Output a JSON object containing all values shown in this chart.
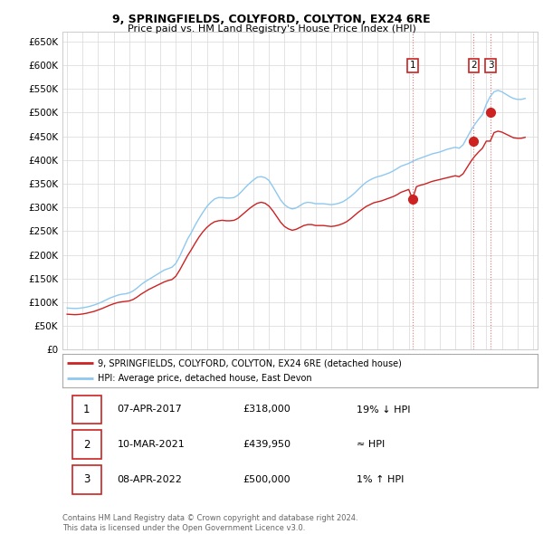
{
  "title": "9, SPRINGFIELDS, COLYFORD, COLYTON, EX24 6RE",
  "subtitle": "Price paid vs. HM Land Registry's House Price Index (HPI)",
  "ylabel_ticks": [
    0,
    50000,
    100000,
    150000,
    200000,
    250000,
    300000,
    350000,
    400000,
    450000,
    500000,
    550000,
    600000,
    650000
  ],
  "ylabel_labels": [
    "£0",
    "£50K",
    "£100K",
    "£150K",
    "£200K",
    "£250K",
    "£300K",
    "£350K",
    "£400K",
    "£450K",
    "£500K",
    "£550K",
    "£600K",
    "£650K"
  ],
  "xlim": [
    1994.7,
    2025.3
  ],
  "ylim": [
    0,
    670000
  ],
  "hpi_color": "#8ec8f0",
  "property_color": "#cc2222",
  "marker_color": "#cc2222",
  "vline_color": "#dd6666",
  "background_color": "#ffffff",
  "grid_color": "#d8d8d8",
  "transactions": [
    {
      "num": 1,
      "date": "07-APR-2017",
      "price": 318000,
      "price_str": "£318,000",
      "relation": "19% ↓ HPI",
      "year": 2017.27
    },
    {
      "num": 2,
      "date": "10-MAR-2021",
      "price": 439950,
      "price_str": "£439,950",
      "relation": "≈ HPI",
      "year": 2021.19
    },
    {
      "num": 3,
      "date": "08-APR-2022",
      "price": 500000,
      "price_str": "£500,000",
      "relation": "1% ↑ HPI",
      "year": 2022.27
    }
  ],
  "legend_property": "9, SPRINGFIELDS, COLYFORD, COLYTON, EX24 6RE (detached house)",
  "legend_hpi": "HPI: Average price, detached house, East Devon",
  "footnote1": "Contains HM Land Registry data © Crown copyright and database right 2024.",
  "footnote2": "This data is licensed under the Open Government Licence v3.0.",
  "hpi_data_years": [
    1995.0,
    1995.25,
    1995.5,
    1995.75,
    1996.0,
    1996.25,
    1996.5,
    1996.75,
    1997.0,
    1997.25,
    1997.5,
    1997.75,
    1998.0,
    1998.25,
    1998.5,
    1998.75,
    1999.0,
    1999.25,
    1999.5,
    1999.75,
    2000.0,
    2000.25,
    2000.5,
    2000.75,
    2001.0,
    2001.25,
    2001.5,
    2001.75,
    2002.0,
    2002.25,
    2002.5,
    2002.75,
    2003.0,
    2003.25,
    2003.5,
    2003.75,
    2004.0,
    2004.25,
    2004.5,
    2004.75,
    2005.0,
    2005.25,
    2005.5,
    2005.75,
    2006.0,
    2006.25,
    2006.5,
    2006.75,
    2007.0,
    2007.25,
    2007.5,
    2007.75,
    2008.0,
    2008.25,
    2008.5,
    2008.75,
    2009.0,
    2009.25,
    2009.5,
    2009.75,
    2010.0,
    2010.25,
    2010.5,
    2010.75,
    2011.0,
    2011.25,
    2011.5,
    2011.75,
    2012.0,
    2012.25,
    2012.5,
    2012.75,
    2013.0,
    2013.25,
    2013.5,
    2013.75,
    2014.0,
    2014.25,
    2014.5,
    2014.75,
    2015.0,
    2015.25,
    2015.5,
    2015.75,
    2016.0,
    2016.25,
    2016.5,
    2016.75,
    2017.0,
    2017.25,
    2017.5,
    2017.75,
    2018.0,
    2018.25,
    2018.5,
    2018.75,
    2019.0,
    2019.25,
    2019.5,
    2019.75,
    2020.0,
    2020.25,
    2020.5,
    2020.75,
    2021.0,
    2021.25,
    2021.5,
    2021.75,
    2022.0,
    2022.25,
    2022.5,
    2022.75,
    2023.0,
    2023.25,
    2023.5,
    2023.75,
    2024.0,
    2024.25,
    2024.5
  ],
  "hpi_data_values": [
    88000,
    87500,
    87000,
    87500,
    88500,
    90000,
    92000,
    94500,
    97500,
    101000,
    105000,
    109000,
    112000,
    115000,
    117000,
    118000,
    120000,
    124000,
    130000,
    137000,
    143000,
    148000,
    153000,
    158000,
    163000,
    168000,
    171000,
    174000,
    182000,
    197000,
    215000,
    233000,
    247000,
    263000,
    277000,
    290000,
    302000,
    311000,
    318000,
    321000,
    321000,
    320000,
    320000,
    321000,
    326000,
    334000,
    343000,
    351000,
    358000,
    364000,
    365000,
    363000,
    357000,
    344000,
    330000,
    316000,
    306000,
    300000,
    297000,
    299000,
    304000,
    309000,
    311000,
    310000,
    308000,
    308000,
    308000,
    307000,
    306000,
    307000,
    309000,
    312000,
    317000,
    323000,
    330000,
    338000,
    346000,
    353000,
    358000,
    362000,
    365000,
    367000,
    370000,
    373000,
    377000,
    382000,
    387000,
    390000,
    393000,
    397000,
    401000,
    404000,
    407000,
    410000,
    413000,
    415000,
    417000,
    420000,
    423000,
    425000,
    427000,
    425000,
    432000,
    447000,
    462000,
    475000,
    486000,
    496000,
    518000,
    534000,
    544000,
    547000,
    544000,
    539000,
    534000,
    530000,
    528000,
    528000,
    530000
  ],
  "prop_data_years": [
    1995.0,
    1995.25,
    1995.5,
    1995.75,
    1996.0,
    1996.25,
    1996.5,
    1996.75,
    1997.0,
    1997.25,
    1997.5,
    1997.75,
    1998.0,
    1998.25,
    1998.5,
    1998.75,
    1999.0,
    1999.25,
    1999.5,
    1999.75,
    2000.0,
    2000.25,
    2000.5,
    2000.75,
    2001.0,
    2001.25,
    2001.5,
    2001.75,
    2002.0,
    2002.25,
    2002.5,
    2002.75,
    2003.0,
    2003.25,
    2003.5,
    2003.75,
    2004.0,
    2004.25,
    2004.5,
    2004.75,
    2005.0,
    2005.25,
    2005.5,
    2005.75,
    2006.0,
    2006.25,
    2006.5,
    2006.75,
    2007.0,
    2007.25,
    2007.5,
    2007.75,
    2008.0,
    2008.25,
    2008.5,
    2008.75,
    2009.0,
    2009.25,
    2009.5,
    2009.75,
    2010.0,
    2010.25,
    2010.5,
    2010.75,
    2011.0,
    2011.25,
    2011.5,
    2011.75,
    2012.0,
    2012.25,
    2012.5,
    2012.75,
    2013.0,
    2013.25,
    2013.5,
    2013.75,
    2014.0,
    2014.25,
    2014.5,
    2014.75,
    2015.0,
    2015.25,
    2015.5,
    2015.75,
    2016.0,
    2016.25,
    2016.5,
    2016.75,
    2017.0,
    2017.25,
    2017.5,
    2017.75,
    2018.0,
    2018.25,
    2018.5,
    2018.75,
    2019.0,
    2019.25,
    2019.5,
    2019.75,
    2020.0,
    2020.25,
    2020.5,
    2020.75,
    2021.0,
    2021.25,
    2021.5,
    2021.75,
    2022.0,
    2022.25,
    2022.5,
    2022.75,
    2023.0,
    2023.25,
    2023.5,
    2023.75,
    2024.0,
    2024.25,
    2024.5
  ],
  "prop_data_values": [
    75000,
    74500,
    74000,
    74500,
    75500,
    77000,
    79000,
    81000,
    84000,
    87000,
    90500,
    94000,
    97000,
    99500,
    101000,
    102000,
    103000,
    106000,
    111000,
    117000,
    122000,
    127000,
    131000,
    135000,
    139000,
    143000,
    146000,
    148000,
    155000,
    168000,
    183000,
    198000,
    211000,
    225000,
    238000,
    249000,
    258000,
    265000,
    270000,
    272000,
    273000,
    272000,
    272000,
    273000,
    277000,
    284000,
    291000,
    298000,
    304000,
    309000,
    311000,
    309000,
    303000,
    293000,
    281000,
    269000,
    260000,
    255000,
    252000,
    254000,
    258000,
    262000,
    264000,
    264000,
    262000,
    262000,
    262000,
    261000,
    260000,
    261000,
    263000,
    266000,
    270000,
    276000,
    283000,
    290000,
    296000,
    302000,
    306000,
    310000,
    312000,
    314000,
    317000,
    320000,
    323000,
    327000,
    332000,
    335000,
    338000,
    318000,
    344000,
    347000,
    349000,
    352000,
    355000,
    357000,
    359000,
    361000,
    363000,
    365000,
    367000,
    365000,
    371000,
    384000,
    397000,
    408000,
    417000,
    425000,
    440000,
    439950,
    458000,
    461000,
    459000,
    455000,
    451000,
    447000,
    446000,
    446000,
    448000
  ]
}
